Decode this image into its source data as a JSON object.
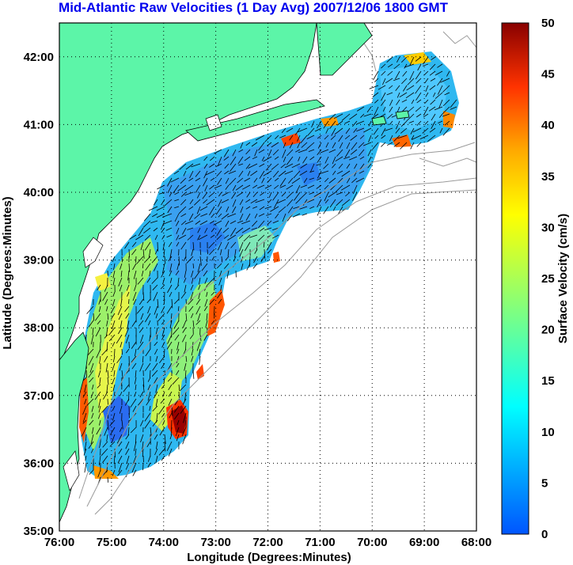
{
  "title": "Mid-Atlantic Raw Velocities (1 Day Avg) 2007/12/06 1800 GMT",
  "map": {
    "xlabel": "Longitude (Degrees:Minutes)",
    "ylabel": "Latitude (Degrees:Minutes)",
    "x_ticks": [
      "76:00",
      "75:00",
      "74:00",
      "73:00",
      "72:00",
      "71:00",
      "70:00",
      "69:00",
      "68:00"
    ],
    "y_ticks": [
      "42:00",
      "41:00",
      "40:00",
      "39:00",
      "38:00",
      "37:00",
      "36:00",
      "35:00"
    ],
    "lon_range": [
      -76,
      -68
    ],
    "lat_range": [
      35,
      42.5
    ],
    "grid": true,
    "land_color": "#5cf5a8"
  },
  "colorbar": {
    "label": "Surface Velocity (cm/s)",
    "ticks": [
      "50",
      "45",
      "40",
      "35",
      "30",
      "25",
      "20",
      "15",
      "10",
      "5",
      "0"
    ],
    "range": [
      0,
      50
    ],
    "colormap": "jet"
  }
}
